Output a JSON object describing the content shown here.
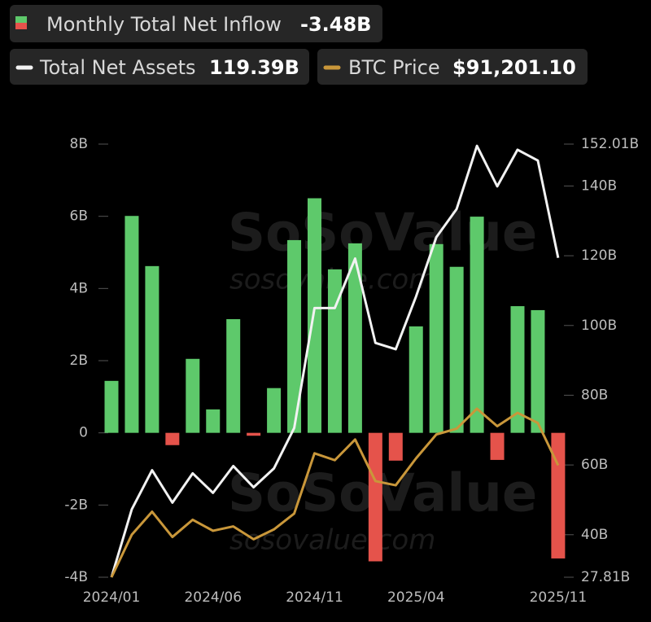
{
  "chart_data": {
    "type": "bar",
    "watermark": [
      "SoSoValue",
      "sosovalue.com"
    ],
    "categories": [
      "2024/01",
      null,
      null,
      null,
      null,
      "2024/06",
      null,
      null,
      null,
      null,
      "2024/11",
      null,
      null,
      null,
      null,
      "2025/04",
      null,
      null,
      null,
      null,
      null,
      null,
      "2025/11"
    ],
    "series": [
      {
        "name": "Monthly Total Net Inflow",
        "header_value": "-3.48B",
        "type": "bar",
        "axis": "y",
        "color": "#5ec96b",
        "negative_color": "#e5534b",
        "values": [
          1.44,
          6.01,
          4.62,
          -0.34,
          2.05,
          0.65,
          3.15,
          -0.08,
          1.24,
          5.34,
          6.5,
          4.53,
          5.25,
          -3.56,
          -0.77,
          2.95,
          5.23,
          4.6,
          5.99,
          -0.75,
          3.51,
          3.4,
          -3.48
        ]
      },
      {
        "name": "Total Net Assets",
        "header_value": "119.39B",
        "type": "line",
        "axis": "y2",
        "color": "#f2f2f2",
        "values": [
          27.81,
          47.3,
          58.5,
          49.2,
          57.6,
          52.0,
          59.7,
          53.6,
          59.0,
          70.6,
          105.0,
          105.0,
          119.2,
          95.0,
          93.2,
          108.3,
          125.3,
          133.4,
          151.5,
          139.9,
          150.4,
          147.3,
          119.39
        ]
      },
      {
        "name": "BTC Price",
        "header_value": "$91,201.10",
        "type": "line",
        "axis": "independent",
        "color": "#c9973a",
        "values": [
          42500,
          61000,
          71000,
          60000,
          67500,
          62700,
          64600,
          59000,
          63300,
          70200,
          96400,
          93400,
          102400,
          84300,
          82500,
          94200,
          104600,
          107100,
          115800,
          108200,
          114000,
          109600,
          91201.1
        ]
      }
    ],
    "ylim": [
      -4,
      8
    ],
    "yticks": [
      {
        "value": -4,
        "label": "-4B"
      },
      {
        "value": -2,
        "label": "-2B"
      },
      0,
      {
        "value": 2,
        "label": "2B"
      },
      {
        "value": 4,
        "label": "4B"
      },
      {
        "value": 6,
        "label": "6B"
      },
      {
        "value": 8,
        "label": "8B"
      }
    ],
    "y2lim": [
      27.81,
      152.01
    ],
    "y2ticks": [
      {
        "value": 27.81,
        "label": "27.81B"
      },
      {
        "value": 40,
        "label": "40B"
      },
      {
        "value": 60,
        "label": "60B"
      },
      {
        "value": 80,
        "label": "80B"
      },
      {
        "value": 100,
        "label": "100B"
      },
      {
        "value": 120,
        "label": "120B"
      },
      {
        "value": 140,
        "label": "140B"
      },
      {
        "value": 152.01,
        "label": "152.01B"
      }
    ]
  }
}
